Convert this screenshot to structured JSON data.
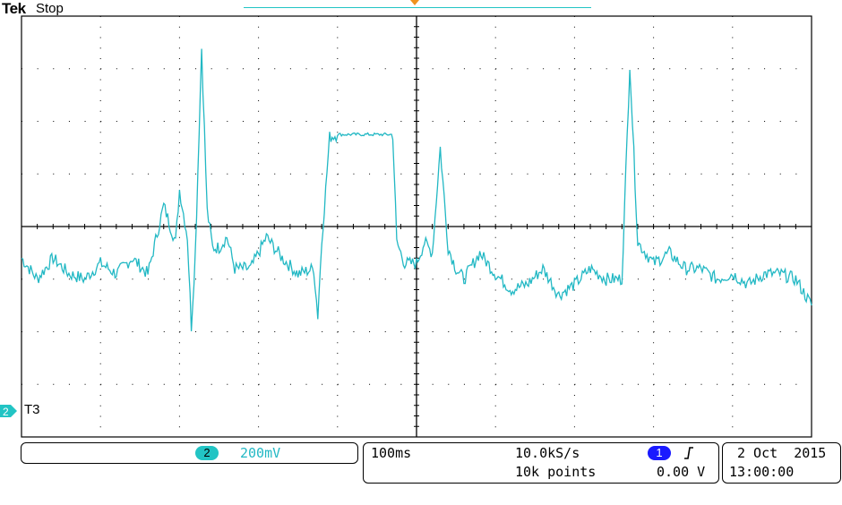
{
  "header": {
    "brand": "Tek",
    "status": "Stop"
  },
  "channel_marker": {
    "number": "2",
    "label": "T3"
  },
  "channel_readout": {
    "number": "2",
    "scale": "200mV"
  },
  "horizontal": {
    "timebase": "100ms",
    "sample_rate": "10.0kS/s",
    "record_length": "10k points"
  },
  "trigger": {
    "source": "1",
    "slope_icon": "rising-edge-icon",
    "level": "0.00 V"
  },
  "datetime": {
    "date": "2 Oct  2015",
    "time": "13:00:00"
  },
  "colors": {
    "trace": "#22b8c4",
    "channel2": "#22c4c4",
    "trigger_channel": "#1a1aff",
    "trigger_marker": "#f0921f"
  },
  "chart_data": {
    "type": "line",
    "x_unit": "divisions",
    "y_unit": "divisions",
    "grid": true,
    "grid_divisions": [
      10,
      8
    ],
    "xlim": [
      0,
      10
    ],
    "ylim": [
      -4,
      4
    ],
    "series": [
      {
        "x": [
          0,
          0.2,
          0.4,
          0.6,
          0.8,
          1.0,
          1.2,
          1.4,
          1.6,
          1.8,
          1.95,
          2.0,
          2.1,
          2.15,
          2.2,
          2.28,
          2.35,
          2.42,
          2.5,
          2.6,
          2.7,
          2.9,
          3.1,
          3.3,
          3.5,
          3.7,
          3.75,
          3.8,
          3.9,
          4.0,
          4.5,
          4.6,
          4.7,
          4.75,
          4.85,
          5.0,
          5.1,
          5.2,
          5.3,
          5.4,
          5.5,
          5.6,
          5.8,
          6.0,
          6.2,
          6.4,
          6.6,
          6.8,
          7.0,
          7.2,
          7.4,
          7.6,
          7.7,
          7.8,
          7.9,
          8.0,
          8.2,
          8.4,
          8.6,
          8.8,
          9.0,
          9.2,
          9.4,
          9.6,
          9.8,
          10.0
        ],
        "y": [
          -0.6,
          -1.0,
          -0.6,
          -0.9,
          -1.0,
          -0.7,
          -0.9,
          -0.6,
          -0.9,
          0.4,
          -0.3,
          0.7,
          -0.2,
          -1.9,
          -0.5,
          3.4,
          0.3,
          -0.4,
          -0.4,
          -0.2,
          -0.8,
          -0.8,
          -0.2,
          -0.6,
          -0.9,
          -0.8,
          -1.7,
          -0.3,
          1.7,
          1.75,
          1.75,
          1.75,
          1.75,
          -0.3,
          -0.7,
          -0.7,
          -0.3,
          -0.5,
          1.5,
          -0.4,
          -0.8,
          -1.0,
          -0.5,
          -0.9,
          -1.2,
          -1.1,
          -0.8,
          -1.3,
          -1.1,
          -0.8,
          -1.0,
          -1.0,
          3.1,
          -0.3,
          -0.5,
          -0.7,
          -0.5,
          -0.8,
          -0.8,
          -1.0,
          -0.9,
          -1.1,
          -0.9,
          -0.9,
          -1.0,
          -1.5
        ]
      }
    ]
  }
}
